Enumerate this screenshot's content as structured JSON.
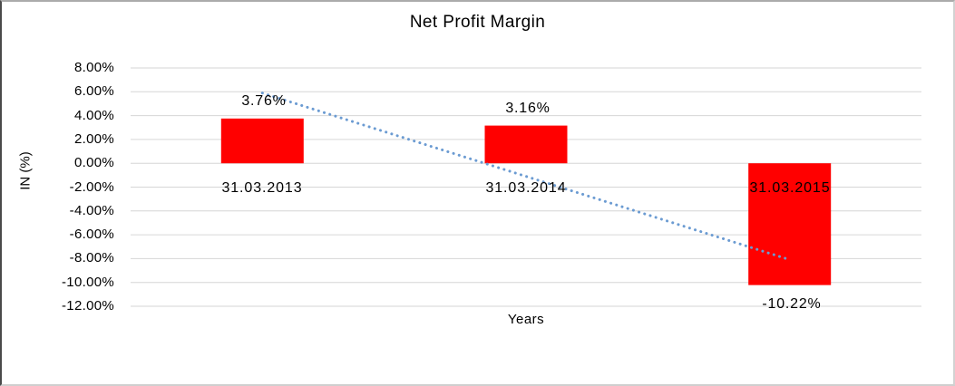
{
  "chart_data": {
    "type": "bar",
    "title": "Net Profit Margin",
    "xlabel": "Years",
    "ylabel": "IN (%)",
    "categories": [
      "31.03.2013",
      "31.03.2014",
      "31.03.2015"
    ],
    "values": [
      3.76,
      3.16,
      -10.22
    ],
    "value_labels": [
      "3.76%",
      "3.16%",
      "-10.22%"
    ],
    "y_ticks": [
      8,
      6,
      4,
      2,
      0,
      -2,
      -4,
      -6,
      -8,
      -10,
      -12
    ],
    "y_tick_labels": [
      "8.00%",
      "6.00%",
      "4.00%",
      "2.00%",
      "0.00%",
      "-2.00%",
      "-4.00%",
      "-6.00%",
      "-8.00%",
      "-10.00%",
      "-12.00%"
    ],
    "ylim": [
      -12,
      8
    ],
    "grid": true,
    "legend": "none",
    "bar_color": "#FF0000",
    "gridline_color": "#D6D6D6",
    "trendline": {
      "type": "linear",
      "style": "dotted",
      "color": "#6B9BD2",
      "start_value": 5.89,
      "end_value": -8.09
    }
  }
}
